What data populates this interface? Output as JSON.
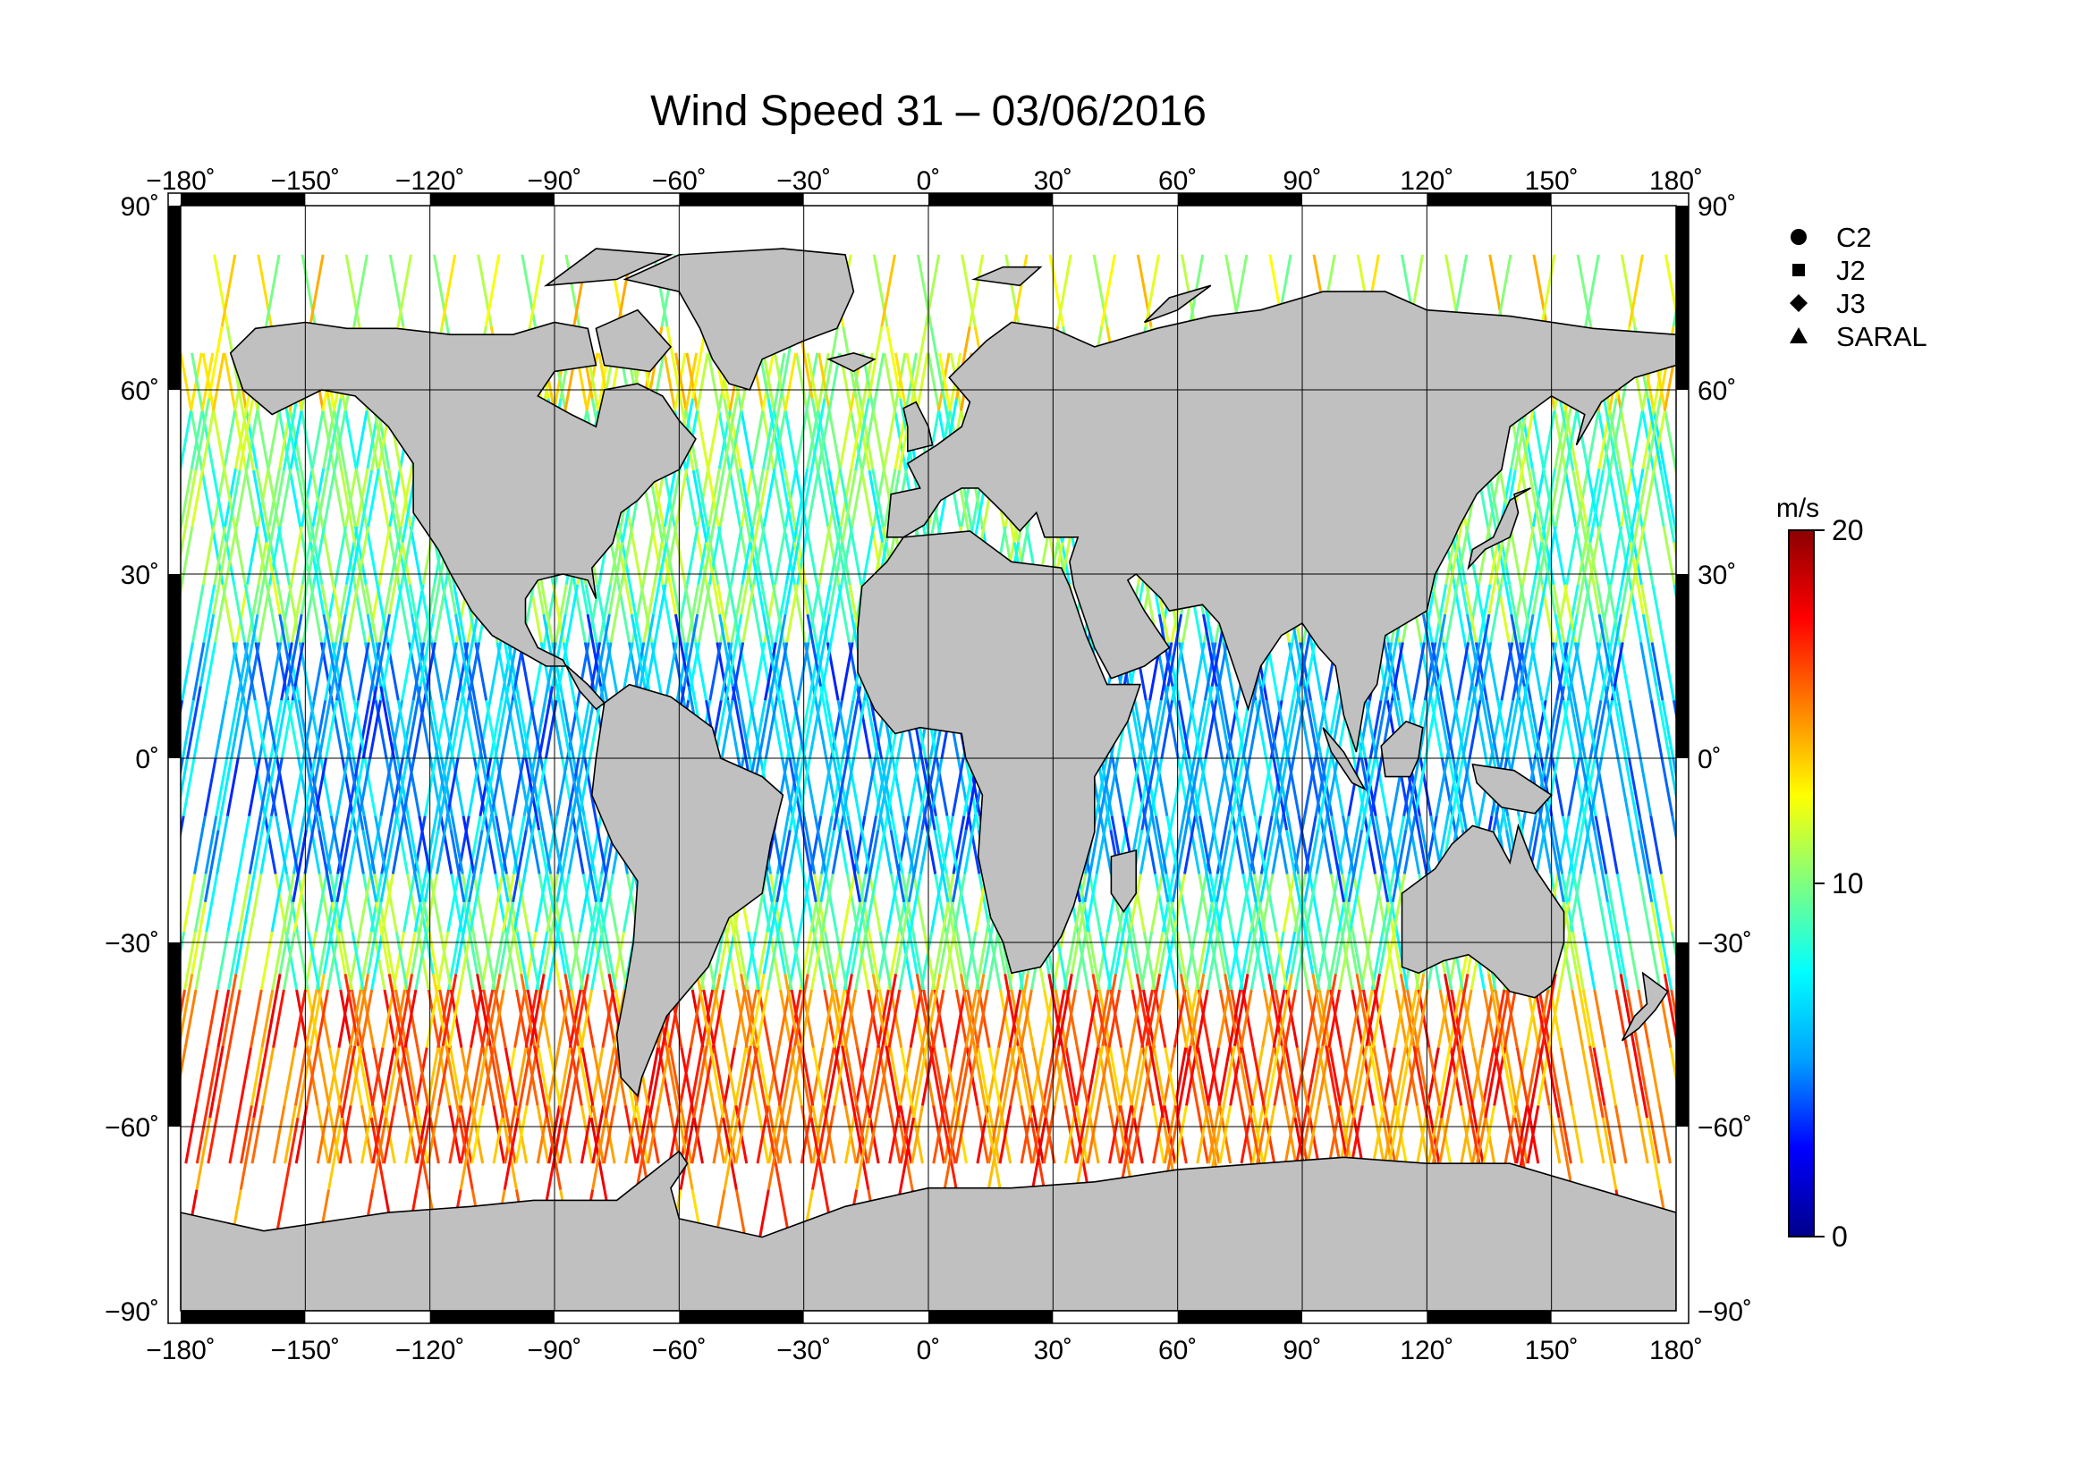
{
  "title": "Wind Speed 31 – 03/06/2016",
  "axes": {
    "lon_ticks": [
      "−180˚",
      "−150˚",
      "−120˚",
      "−90˚",
      "−60˚",
      "−30˚",
      "0˚",
      "30˚",
      "60˚",
      "90˚",
      "120˚",
      "150˚",
      "180˚"
    ],
    "lat_ticks": [
      "90˚",
      "60˚",
      "30˚",
      "0˚",
      "−30˚",
      "−60˚",
      "−90˚"
    ],
    "lon_range": [
      -180,
      180
    ],
    "lat_range": [
      -90,
      90
    ],
    "grid": true
  },
  "legend": {
    "placement": "top-right",
    "items": [
      {
        "label": "C2",
        "marker": "circle"
      },
      {
        "label": "J2",
        "marker": "square"
      },
      {
        "label": "J3",
        "marker": "diamond"
      },
      {
        "label": "SARAL",
        "marker": "triangle"
      }
    ]
  },
  "colorbar": {
    "unit": "m/s",
    "min": 0,
    "max": 20,
    "tick_labels": [
      "20",
      "10",
      "0"
    ],
    "colormap": [
      "#00008b",
      "#0000ff",
      "#00a0ff",
      "#00ffff",
      "#7fff7f",
      "#ffff00",
      "#ff8000",
      "#ff0000",
      "#8b0000"
    ]
  },
  "colors": {
    "land": "#c0c0c0",
    "ocean": "#ffffff",
    "frame": "#000000"
  }
}
